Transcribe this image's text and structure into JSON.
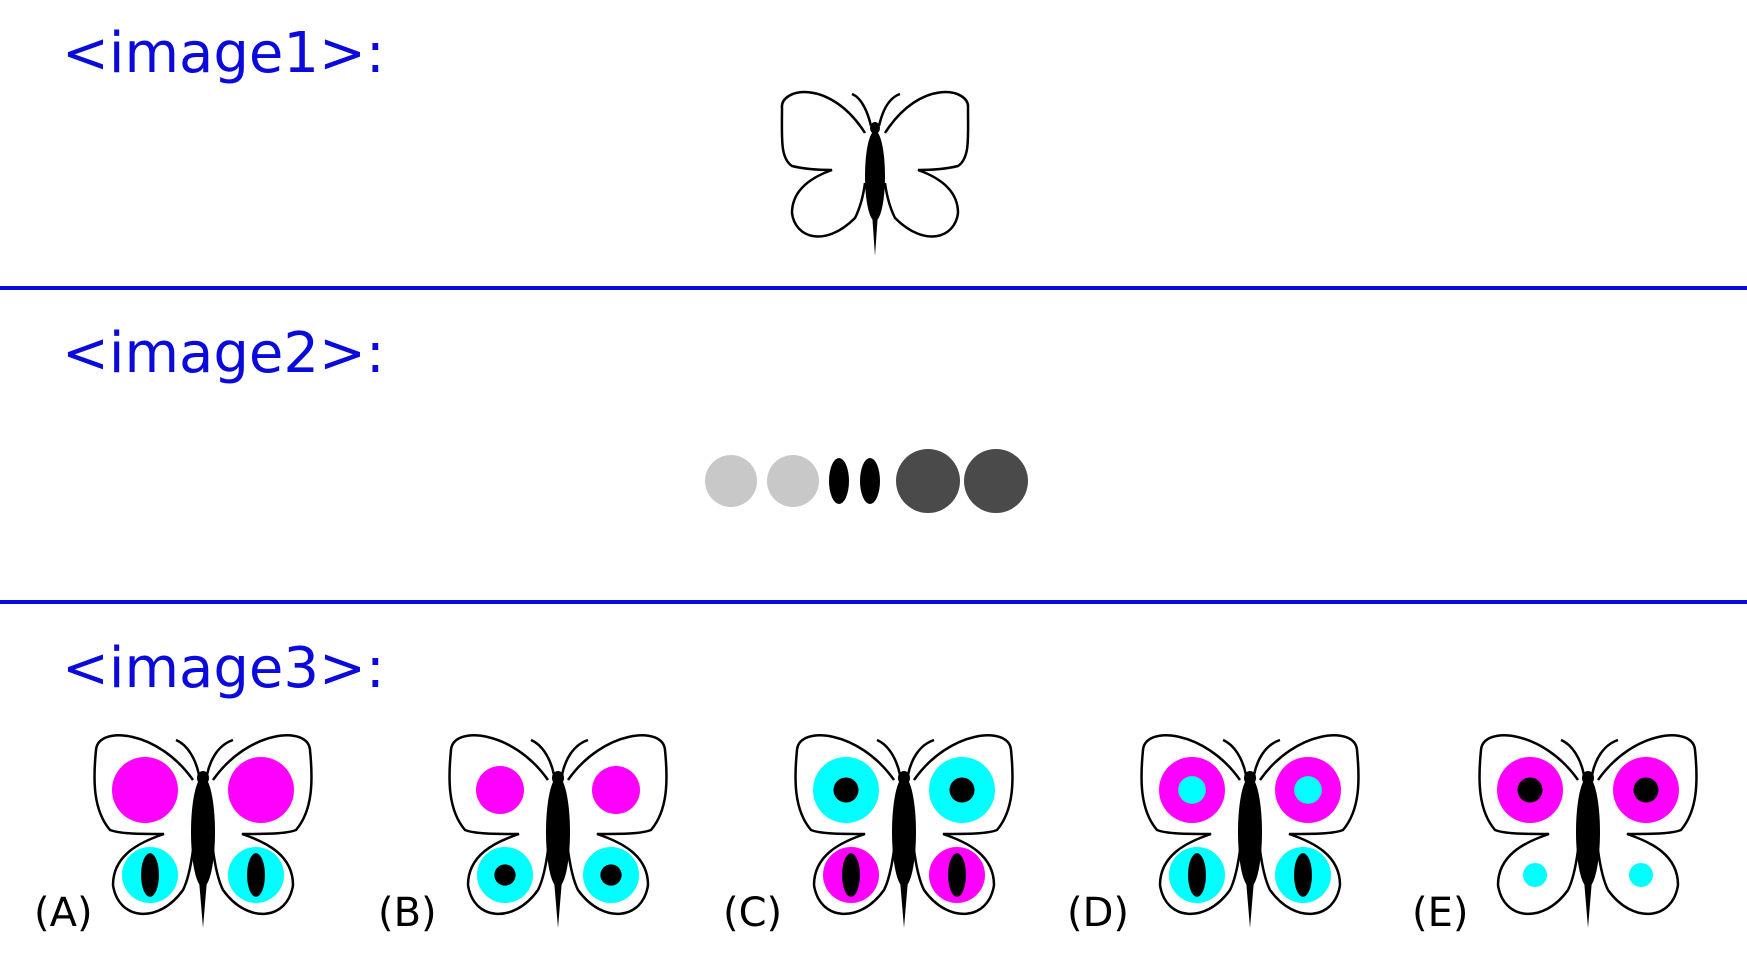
{
  "headings": [
    "<image1>:",
    "<image2>:",
    "<image3>:"
  ],
  "colors": {
    "heading": "#0a0adc",
    "magenta": "#ff00ff",
    "cyan": "#00ffff",
    "light_gray": "#c8c8c8",
    "dark_gray": "#4a4a4a",
    "ink": "#000000"
  },
  "options": [
    {
      "label": "(A)",
      "upper": {
        "outer": "magenta"
      },
      "lower": {
        "outer": "cyan",
        "inner": "black-oval"
      }
    },
    {
      "label": "(B)",
      "upper": {
        "outer": "magenta"
      },
      "lower": {
        "outer": "cyan",
        "inner": "black-dot"
      }
    },
    {
      "label": "(C)",
      "upper": {
        "outer": "cyan",
        "inner": "black-dot"
      },
      "lower": {
        "outer": "magenta",
        "inner": "black-oval"
      }
    },
    {
      "label": "(D)",
      "upper": {
        "outer": "magenta",
        "inner": "cyan-dot"
      },
      "lower": {
        "outer": "cyan",
        "inner": "black-oval"
      }
    },
    {
      "label": "(E)",
      "upper": {
        "outer": "magenta",
        "inner": "black-dot"
      },
      "lower": {
        "outer": "cyan"
      }
    }
  ]
}
